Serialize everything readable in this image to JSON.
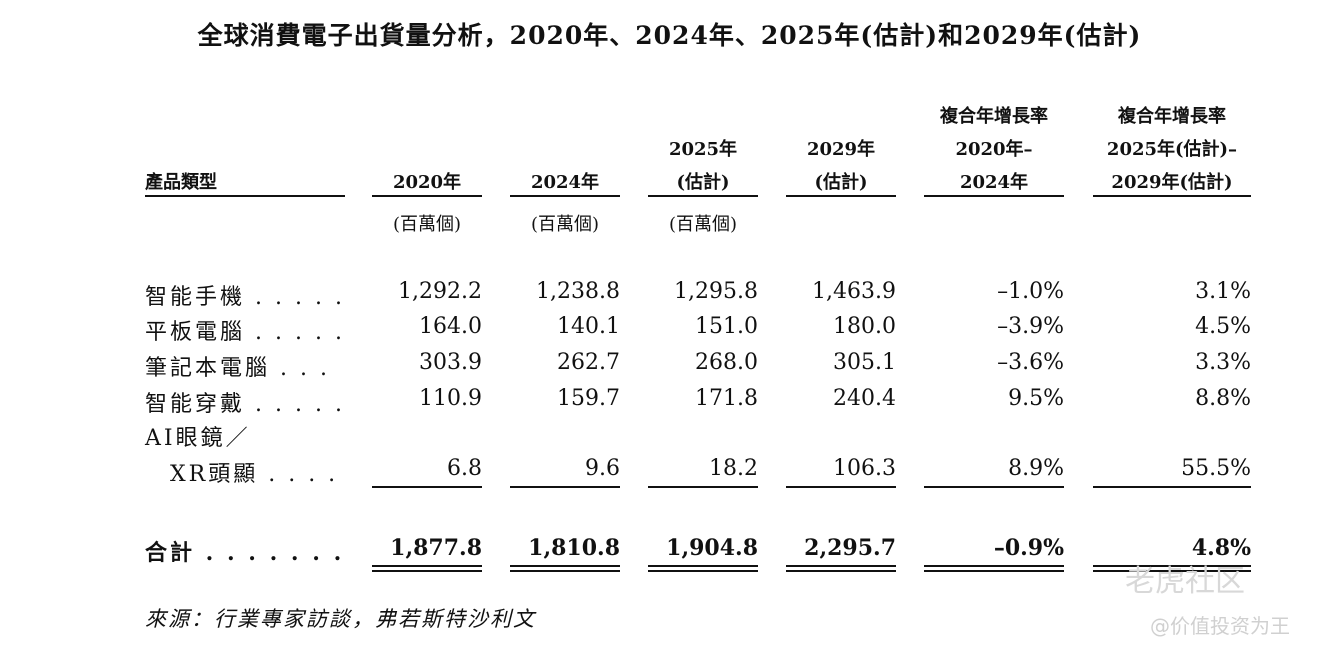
{
  "title": "全球消費電子出貨量分析，2020年、2024年、2025年(估計)和2029年(估計)",
  "columns": [
    {
      "header": [
        "產品類型"
      ],
      "unit": ""
    },
    {
      "header": [
        "2020年"
      ],
      "unit": "(百萬個)"
    },
    {
      "header": [
        "2024年"
      ],
      "unit": "(百萬個)"
    },
    {
      "header": [
        "2025年",
        "(估計)"
      ],
      "unit": "(百萬個)"
    },
    {
      "header": [
        "2029年",
        "(估計)"
      ],
      "unit": ""
    },
    {
      "header": [
        "複合年增長率",
        "2020年–",
        "2024年"
      ],
      "unit": ""
    },
    {
      "header": [
        "複合年增長率",
        "2025年(估計)–",
        "2029年(估計)"
      ],
      "unit": ""
    }
  ],
  "rows": [
    {
      "category": "智能手機 . . . . .",
      "values": [
        "1,292.2",
        "1,238.8",
        "1,295.8",
        "1,463.9",
        "–1.0%",
        "3.1%"
      ]
    },
    {
      "category": "平板電腦 . . . . .",
      "values": [
        "164.0",
        "140.1",
        "151.0",
        "180.0",
        "–3.9%",
        "4.5%"
      ]
    },
    {
      "category": "筆記本電腦 . . .",
      "values": [
        "303.9",
        "262.7",
        "268.0",
        "305.1",
        "–3.6%",
        "3.3%"
      ]
    },
    {
      "category": "智能穿戴 . . . . .",
      "values": [
        "110.9",
        "159.7",
        "171.8",
        "240.4",
        "9.5%",
        "8.8%"
      ]
    },
    {
      "category_line1": "AI眼鏡／",
      "category": "XR頭顯 . . . .",
      "values": [
        "6.8",
        "9.6",
        "18.2",
        "106.3",
        "8.9%",
        "55.5%"
      ]
    }
  ],
  "total": {
    "category": "合計 . . . . . . .",
    "values": [
      "1,877.8",
      "1,810.8",
      "1,904.8",
      "2,295.7",
      "–0.9%",
      "4.8%"
    ]
  },
  "source": "來源：行業專家訪談，弗若斯特沙利文",
  "watermark": {
    "brand": "老虎社区",
    "handle": "@价值投资为王"
  }
}
